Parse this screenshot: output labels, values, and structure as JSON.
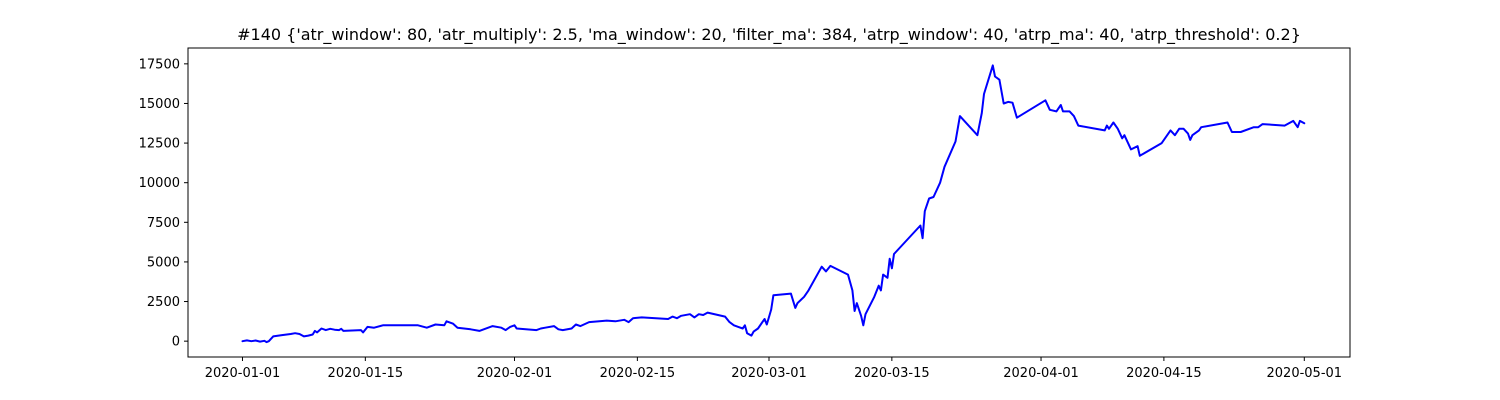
{
  "chart_data": {
    "type": "line",
    "title": "#140 {'atr_window': 80, 'atr_multiply': 2.5, 'ma_window': 20, 'filter_ma': 384, 'atrp_window': 40, 'atrp_ma': 40, 'atrp_threshold': 0.2}",
    "xlabel": "",
    "ylabel": "",
    "grid": false,
    "legend": "none",
    "line_color": "#0000ff",
    "x_ticks": [
      "2020-01-01",
      "2020-01-15",
      "2020-02-01",
      "2020-02-15",
      "2020-03-01",
      "2020-03-15",
      "2020-04-01",
      "2020-04-15",
      "2020-05-01"
    ],
    "y_ticks": [
      "0",
      "2500",
      "5000",
      "7500",
      "10000",
      "12500",
      "15000",
      "17500"
    ],
    "xlim": [
      "2019-12-25 19:00",
      "2020-05-06 05:00"
    ],
    "ylim": [
      -1000,
      18500
    ],
    "series": [
      {
        "points": [
          [
            "2020-01-01 00:00",
            0
          ],
          [
            "2020-01-01 12:00",
            50
          ],
          [
            "2020-01-02 00:00",
            0
          ],
          [
            "2020-01-02 12:00",
            40
          ],
          [
            "2020-01-03 00:00",
            -30
          ],
          [
            "2020-01-03 12:00",
            20
          ],
          [
            "2020-01-03 18:00",
            -60
          ],
          [
            "2020-01-04 00:00",
            0
          ],
          [
            "2020-01-04 12:00",
            300
          ],
          [
            "2020-01-05 12:00",
            380
          ],
          [
            "2020-01-06 12:00",
            450
          ],
          [
            "2020-01-07 00:00",
            500
          ],
          [
            "2020-01-07 12:00",
            450
          ],
          [
            "2020-01-08 00:00",
            300
          ],
          [
            "2020-01-08 12:00",
            350
          ],
          [
            "2020-01-09 00:00",
            420
          ],
          [
            "2020-01-09 06:00",
            650
          ],
          [
            "2020-01-09 12:00",
            550
          ],
          [
            "2020-01-10 00:00",
            800
          ],
          [
            "2020-01-10 12:00",
            700
          ],
          [
            "2020-01-11 00:00",
            780
          ],
          [
            "2020-01-11 12:00",
            720
          ],
          [
            "2020-01-12 00:00",
            700
          ],
          [
            "2020-01-12 06:00",
            780
          ],
          [
            "2020-01-12 12:00",
            650
          ],
          [
            "2020-01-14 12:00",
            700
          ],
          [
            "2020-01-14 18:00",
            550
          ],
          [
            "2020-01-15 06:00",
            900
          ],
          [
            "2020-01-16 00:00",
            850
          ],
          [
            "2020-01-17 00:00",
            1000
          ],
          [
            "2020-01-21 00:00",
            1000
          ],
          [
            "2020-01-22 00:00",
            850
          ],
          [
            "2020-01-23 00:00",
            1050
          ],
          [
            "2020-01-24 00:00",
            1000
          ],
          [
            "2020-01-24 06:00",
            1250
          ],
          [
            "2020-01-25 00:00",
            1100
          ],
          [
            "2020-01-25 12:00",
            850
          ],
          [
            "2020-01-27 00:00",
            750
          ],
          [
            "2020-01-28 00:00",
            650
          ],
          [
            "2020-01-29 00:00",
            850
          ],
          [
            "2020-01-29 12:00",
            950
          ],
          [
            "2020-01-30 12:00",
            850
          ],
          [
            "2020-01-31 00:00",
            700
          ],
          [
            "2020-01-31 12:00",
            900
          ],
          [
            "2020-02-01 00:00",
            1000
          ],
          [
            "2020-02-01 06:00",
            800
          ],
          [
            "2020-02-03 12:00",
            700
          ],
          [
            "2020-02-04 00:00",
            800
          ],
          [
            "2020-02-04 12:00",
            850
          ],
          [
            "2020-02-05 12:00",
            950
          ],
          [
            "2020-02-06 00:00",
            750
          ],
          [
            "2020-02-06 12:00",
            700
          ],
          [
            "2020-02-07 12:00",
            800
          ],
          [
            "2020-02-08 00:00",
            1050
          ],
          [
            "2020-02-08 12:00",
            950
          ],
          [
            "2020-02-09 12:00",
            1200
          ],
          [
            "2020-02-11 12:00",
            1300
          ],
          [
            "2020-02-12 12:00",
            1250
          ],
          [
            "2020-02-13 12:00",
            1350
          ],
          [
            "2020-02-14 00:00",
            1200
          ],
          [
            "2020-02-14 12:00",
            1450
          ],
          [
            "2020-02-15 12:00",
            1500
          ],
          [
            "2020-02-18 12:00",
            1400
          ],
          [
            "2020-02-19 00:00",
            1550
          ],
          [
            "2020-02-19 12:00",
            1450
          ],
          [
            "2020-02-20 00:00",
            1600
          ],
          [
            "2020-02-21 00:00",
            1700
          ],
          [
            "2020-02-21 12:00",
            1500
          ],
          [
            "2020-02-22 00:00",
            1700
          ],
          [
            "2020-02-22 12:00",
            1650
          ],
          [
            "2020-02-23 00:00",
            1800
          ],
          [
            "2020-02-25 00:00",
            1550
          ],
          [
            "2020-02-25 12:00",
            1200
          ],
          [
            "2020-02-26 00:00",
            1000
          ],
          [
            "2020-02-26 12:00",
            900
          ],
          [
            "2020-02-27 00:00",
            800
          ],
          [
            "2020-02-27 06:00",
            1000
          ],
          [
            "2020-02-27 12:00",
            500
          ],
          [
            "2020-02-28 00:00",
            350
          ],
          [
            "2020-02-28 06:00",
            600
          ],
          [
            "2020-02-28 18:00",
            800
          ],
          [
            "2020-02-29 06:00",
            1200
          ],
          [
            "2020-02-29 12:00",
            1400
          ],
          [
            "2020-02-29 18:00",
            1050
          ],
          [
            "2020-03-01 06:00",
            2000
          ],
          [
            "2020-03-01 12:00",
            2900
          ],
          [
            "2020-03-03 12:00",
            3000
          ],
          [
            "2020-03-04 00:00",
            2100
          ],
          [
            "2020-03-04 06:00",
            2400
          ],
          [
            "2020-03-05 00:00",
            2800
          ],
          [
            "2020-03-05 12:00",
            3200
          ],
          [
            "2020-03-07 00:00",
            4700
          ],
          [
            "2020-03-07 12:00",
            4400
          ],
          [
            "2020-03-08 00:00",
            4750
          ],
          [
            "2020-03-10 00:00",
            4200
          ],
          [
            "2020-03-10 12:00",
            3200
          ],
          [
            "2020-03-10 18:00",
            1900
          ],
          [
            "2020-03-11 00:00",
            2400
          ],
          [
            "2020-03-11 12:00",
            1600
          ],
          [
            "2020-03-11 18:00",
            1000
          ],
          [
            "2020-03-12 00:00",
            1700
          ],
          [
            "2020-03-13 00:00",
            2800
          ],
          [
            "2020-03-13 12:00",
            3500
          ],
          [
            "2020-03-13 18:00",
            3200
          ],
          [
            "2020-03-14 00:00",
            4200
          ],
          [
            "2020-03-14 12:00",
            4000
          ],
          [
            "2020-03-14 18:00",
            5200
          ],
          [
            "2020-03-15 00:00",
            4600
          ],
          [
            "2020-03-15 06:00",
            5500
          ],
          [
            "2020-03-18 06:00",
            7300
          ],
          [
            "2020-03-18 12:00",
            6500
          ],
          [
            "2020-03-18 18:00",
            8200
          ],
          [
            "2020-03-19 06:00",
            9000
          ],
          [
            "2020-03-19 18:00",
            9100
          ],
          [
            "2020-03-20 12:00",
            10000
          ],
          [
            "2020-03-21 00:00",
            11000
          ],
          [
            "2020-03-22 06:00",
            12600
          ],
          [
            "2020-03-22 18:00",
            14200
          ],
          [
            "2020-03-24 18:00",
            13000
          ],
          [
            "2020-03-25 06:00",
            14400
          ],
          [
            "2020-03-25 12:00",
            15600
          ],
          [
            "2020-03-26 12:00",
            17400
          ],
          [
            "2020-03-26 18:00",
            16700
          ],
          [
            "2020-03-27 06:00",
            16500
          ],
          [
            "2020-03-27 18:00",
            15000
          ],
          [
            "2020-03-28 06:00",
            15100
          ],
          [
            "2020-03-28 18:00",
            15050
          ],
          [
            "2020-03-29 06:00",
            14100
          ],
          [
            "2020-04-01 12:00",
            15200
          ],
          [
            "2020-04-02 00:00",
            14600
          ],
          [
            "2020-04-02 18:00",
            14500
          ],
          [
            "2020-04-03 06:00",
            14900
          ],
          [
            "2020-04-03 12:00",
            14500
          ],
          [
            "2020-04-04 06:00",
            14500
          ],
          [
            "2020-04-04 18:00",
            14200
          ],
          [
            "2020-04-05 06:00",
            13600
          ],
          [
            "2020-04-08 06:00",
            13300
          ],
          [
            "2020-04-08 12:00",
            13600
          ],
          [
            "2020-04-08 18:00",
            13400
          ],
          [
            "2020-04-09 06:00",
            13800
          ],
          [
            "2020-04-09 18:00",
            13400
          ],
          [
            "2020-04-10 06:00",
            12800
          ],
          [
            "2020-04-10 12:00",
            13000
          ],
          [
            "2020-04-10 18:00",
            12700
          ],
          [
            "2020-04-11 06:00",
            12100
          ],
          [
            "2020-04-12 00:00",
            12300
          ],
          [
            "2020-04-12 06:00",
            11700
          ],
          [
            "2020-04-14 18:00",
            12500
          ],
          [
            "2020-04-15 18:00",
            13300
          ],
          [
            "2020-04-16 06:00",
            13000
          ],
          [
            "2020-04-16 18:00",
            13400
          ],
          [
            "2020-04-17 06:00",
            13400
          ],
          [
            "2020-04-17 18:00",
            13100
          ],
          [
            "2020-04-18 00:00",
            12700
          ],
          [
            "2020-04-18 06:00",
            13000
          ],
          [
            "2020-04-19 00:00",
            13300
          ],
          [
            "2020-04-19 06:00",
            13500
          ],
          [
            "2020-04-22 06:00",
            13800
          ],
          [
            "2020-04-22 18:00",
            13200
          ],
          [
            "2020-04-23 18:00",
            13200
          ],
          [
            "2020-04-25 06:00",
            13500
          ],
          [
            "2020-04-25 18:00",
            13500
          ],
          [
            "2020-04-26 06:00",
            13700
          ],
          [
            "2020-04-28 18:00",
            13600
          ],
          [
            "2020-04-29 18:00",
            13900
          ],
          [
            "2020-04-30 06:00",
            13500
          ],
          [
            "2020-04-30 12:00",
            13900
          ],
          [
            "2020-05-01 00:00",
            13750
          ]
        ]
      }
    ]
  }
}
